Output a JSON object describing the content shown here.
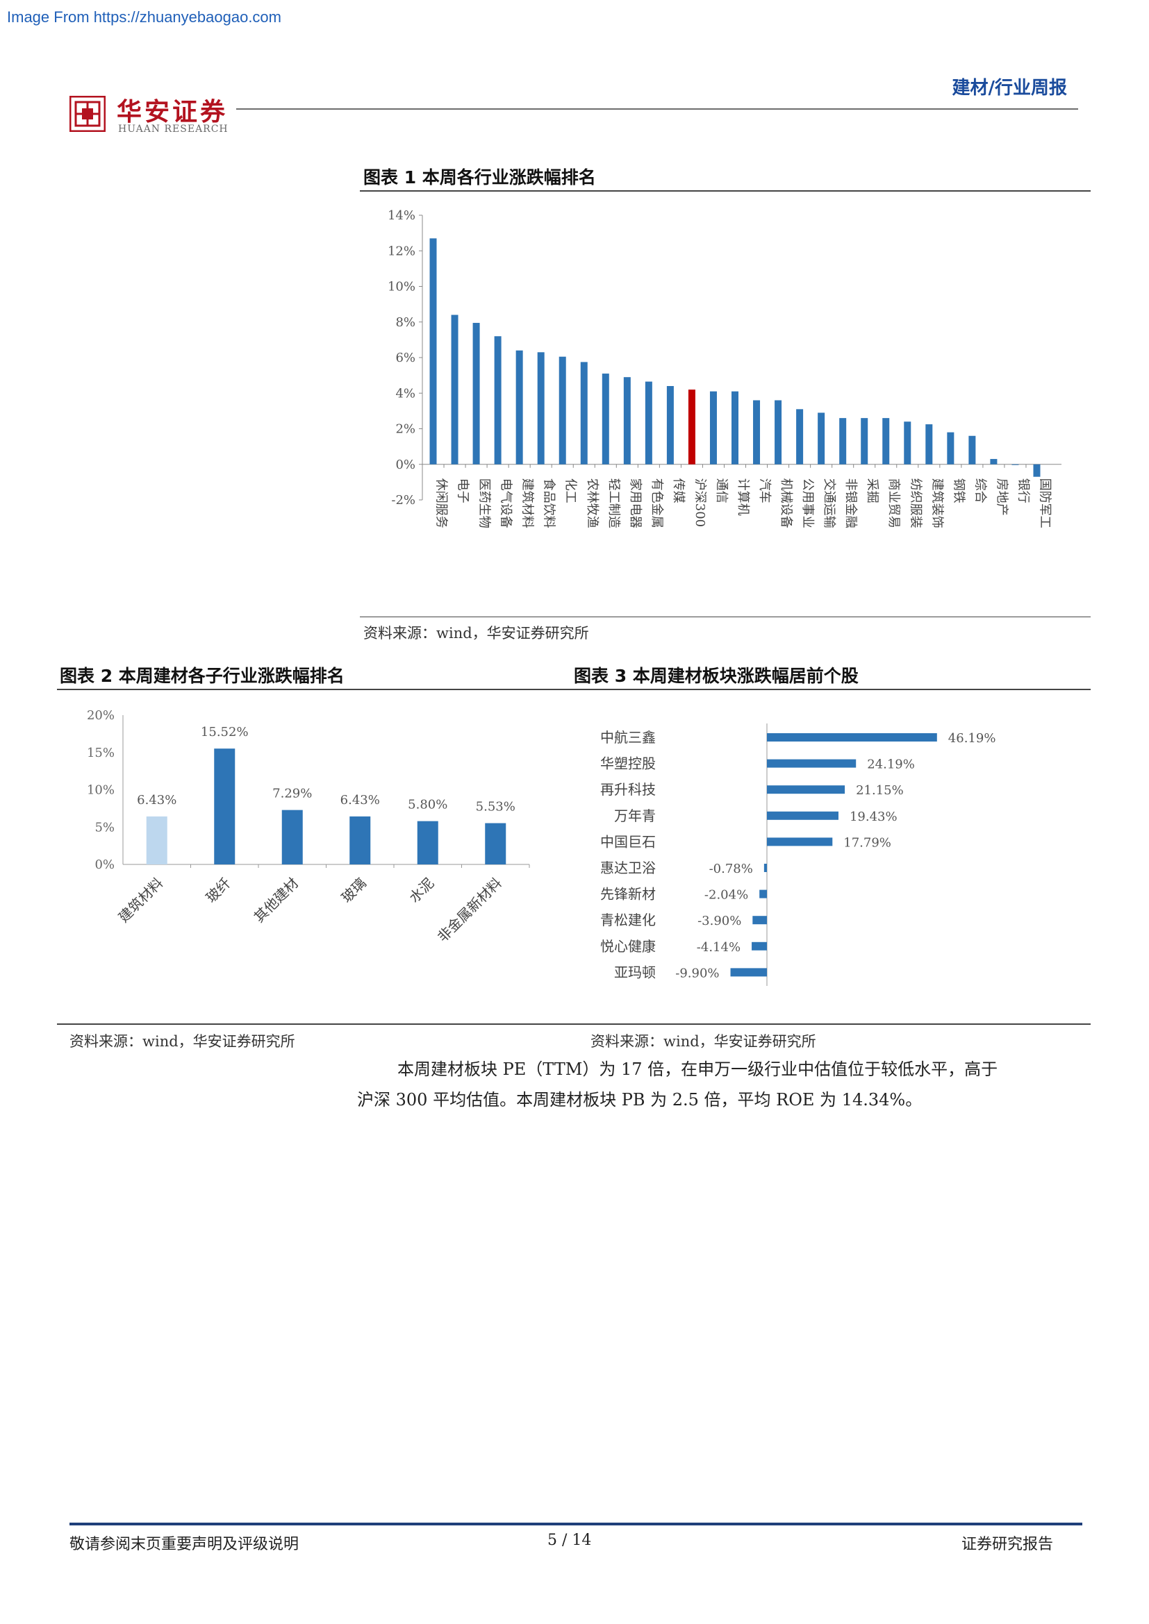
{
  "watermark": "Image From https://zhuanyebaogao.com",
  "header": {
    "logo_cn": "华安证券",
    "logo_en": "HUAAN RESEARCH",
    "report_type": "建材/行业周报"
  },
  "figure1": {
    "title": "图表 1  本周各行业涨跌幅排名",
    "source": "资料来源：wind，华安证券研究所",
    "chart_data": {
      "type": "bar",
      "categories": [
        "休闲服务",
        "电子",
        "医药生物",
        "电气设备",
        "建筑材料",
        "食品饮料",
        "化工",
        "农林牧渔",
        "轻工制造",
        "家用电器",
        "有色金属",
        "传媒",
        "沪深300",
        "通信",
        "计算机",
        "汽车",
        "机械设备",
        "公用事业",
        "交通运输",
        "非银金融",
        "采掘",
        "商业贸易",
        "纺织服装",
        "建筑装饰",
        "钢铁",
        "综合",
        "房地产",
        "银行",
        "国防军工"
      ],
      "values": [
        12.7,
        8.4,
        7.95,
        7.2,
        6.4,
        6.3,
        6.05,
        5.75,
        5.1,
        4.9,
        4.65,
        4.4,
        4.2,
        4.1,
        4.1,
        3.6,
        3.6,
        3.1,
        2.9,
        2.6,
        2.6,
        2.6,
        2.4,
        2.25,
        1.8,
        1.6,
        0.3,
        0.0,
        -0.7
      ],
      "highlight": "沪深300",
      "ylim": [
        -2,
        14
      ],
      "yticks": [
        "-2%",
        "0%",
        "2%",
        "4%",
        "6%",
        "8%",
        "10%",
        "12%",
        "14%"
      ],
      "bar_color": "#2e75b6",
      "highlight_color": "#c00000"
    }
  },
  "figure2": {
    "title": "图表 2  本周建材各子行业涨跌幅排名",
    "source": "资料来源：wind，华安证券研究所",
    "chart_data": {
      "type": "bar",
      "categories": [
        "建筑材料",
        "玻纤",
        "其他建材",
        "玻璃",
        "水泥",
        "非金属新材料"
      ],
      "values": [
        6.43,
        15.52,
        7.29,
        6.43,
        5.8,
        5.53
      ],
      "labels": [
        "6.43%",
        "15.52%",
        "7.29%",
        "6.43%",
        "5.80%",
        "5.53%"
      ],
      "ylim": [
        0,
        20
      ],
      "yticks": [
        "0%",
        "5%",
        "10%",
        "15%",
        "20%"
      ],
      "colors": [
        "#bdd7ee",
        "#2e75b6",
        "#2e75b6",
        "#2e75b6",
        "#2e75b6",
        "#2e75b6"
      ]
    }
  },
  "figure3": {
    "title": "图表 3  本周建材板块涨跌幅居前个股",
    "source": "资料来源：wind，华安证券研究所",
    "chart_data": {
      "type": "bar",
      "orientation": "horizontal",
      "categories": [
        "中航三鑫",
        "华塑控股",
        "再升科技",
        "万年青",
        "中国巨石",
        "惠达卫浴",
        "先锋新材",
        "青松建化",
        "悦心健康",
        "亚玛顿"
      ],
      "values": [
        46.19,
        24.19,
        21.15,
        19.43,
        17.79,
        -0.78,
        -2.04,
        -3.9,
        -4.14,
        -9.9
      ],
      "labels": [
        "46.19%",
        "24.19%",
        "21.15%",
        "19.43%",
        "17.79%",
        "-0.78%",
        "-2.04%",
        "-3.90%",
        "-4.14%",
        "-9.90%"
      ],
      "bar_color": "#2e75b6"
    }
  },
  "body": {
    "paragraph": "本周建材板块 PE（TTM）为 17 倍，在申万一级行业中估值位于较低水平，高于沪深 300 平均估值。本周建材板块 PB 为 2.5 倍，平均 ROE 为 14.34%。",
    "line1": "本周建材板块 PE（TTM）为 17 倍，在申万一级行业中估值位于较低水平，高于",
    "line2": "沪深 300 平均估值。本周建材板块 PB 为 2.5 倍，平均 ROE 为 14.34%。"
  },
  "footer": {
    "left": "敬请参阅末页重要声明及评级说明",
    "page": "5 / 14",
    "right": "证券研究报告"
  }
}
